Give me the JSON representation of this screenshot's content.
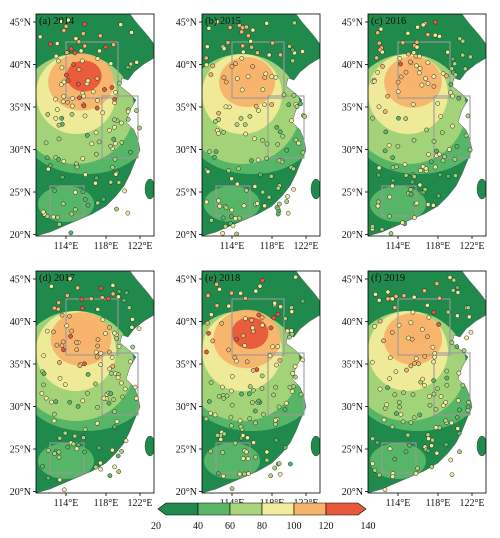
{
  "panels": [
    {
      "id": "a",
      "title": "(a) 2014",
      "intensity": 0.55
    },
    {
      "id": "b",
      "title": "(b) 2015",
      "intensity": 0.25
    },
    {
      "id": "c",
      "title": "(c) 2016",
      "intensity": 0.3
    },
    {
      "id": "d",
      "title": "(d) 2017",
      "intensity": 0.4
    },
    {
      "id": "e",
      "title": "(e) 2018",
      "intensity": 0.6
    },
    {
      "id": "f",
      "title": "(f) 2019",
      "intensity": 0.32
    }
  ],
  "lat_ticks": [
    "20°N",
    "25°N",
    "30°N",
    "35°N",
    "40°N",
    "45°N"
  ],
  "lon_ticks": [
    "114°E",
    "118°E",
    "122°E"
  ],
  "colorbar": {
    "ticks": [
      "20",
      "40",
      "60",
      "80",
      "100",
      "120",
      "140"
    ],
    "colors": [
      "#1f8a4c",
      "#5ab768",
      "#a8d57a",
      "#f2eb9a",
      "#f7b36b",
      "#e8583a"
    ]
  },
  "colors": {
    "ocean": "#ffffff",
    "station_stroke": "#222222",
    "region_box": "#9a9a9a"
  }
}
